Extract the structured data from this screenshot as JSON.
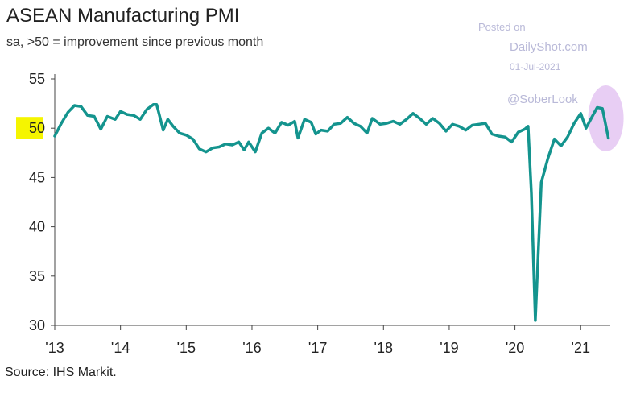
{
  "chart_data": {
    "type": "line",
    "title": "ASEAN Manufacturing PMI",
    "subtitle": "sa, >50 = improvement since previous month",
    "xlabel": "",
    "ylabel": "",
    "ylim": [
      30,
      55
    ],
    "yticks": [
      55,
      50,
      45,
      40,
      35,
      30
    ],
    "highlighted_ytick": 50,
    "highlight_color": "#f5f500",
    "xlim": [
      2013.0,
      2021.45
    ],
    "xticks": [
      {
        "value": 2013,
        "label": "'13"
      },
      {
        "value": 2014,
        "label": "'14"
      },
      {
        "value": 2015,
        "label": "'15"
      },
      {
        "value": 2016,
        "label": "'16"
      },
      {
        "value": 2017,
        "label": "'17"
      },
      {
        "value": 2018,
        "label": "'18"
      },
      {
        "value": 2019,
        "label": "'19"
      },
      {
        "value": 2020,
        "label": "'20"
      },
      {
        "value": 2021,
        "label": "'21"
      }
    ],
    "series": [
      {
        "name": "ASEAN Manufacturing PMI",
        "color": "#14948e",
        "points": [
          [
            2013.0,
            49.2
          ],
          [
            2013.1,
            50.5
          ],
          [
            2013.2,
            51.6
          ],
          [
            2013.3,
            52.3
          ],
          [
            2013.4,
            52.2
          ],
          [
            2013.5,
            51.3
          ],
          [
            2013.6,
            51.2
          ],
          [
            2013.7,
            49.9
          ],
          [
            2013.8,
            51.2
          ],
          [
            2013.92,
            50.9
          ],
          [
            2014.0,
            51.7
          ],
          [
            2014.1,
            51.4
          ],
          [
            2014.2,
            51.3
          ],
          [
            2014.3,
            50.9
          ],
          [
            2014.4,
            51.9
          ],
          [
            2014.5,
            52.4
          ],
          [
            2014.55,
            52.4
          ],
          [
            2014.65,
            49.8
          ],
          [
            2014.72,
            50.9
          ],
          [
            2014.8,
            50.2
          ],
          [
            2014.9,
            49.5
          ],
          [
            2015.0,
            49.3
          ],
          [
            2015.1,
            48.9
          ],
          [
            2015.2,
            47.9
          ],
          [
            2015.3,
            47.6
          ],
          [
            2015.4,
            48.0
          ],
          [
            2015.5,
            48.1
          ],
          [
            2015.6,
            48.4
          ],
          [
            2015.7,
            48.3
          ],
          [
            2015.8,
            48.6
          ],
          [
            2015.88,
            47.8
          ],
          [
            2015.95,
            48.6
          ],
          [
            2016.05,
            47.6
          ],
          [
            2016.15,
            49.5
          ],
          [
            2016.25,
            50.0
          ],
          [
            2016.35,
            49.5
          ],
          [
            2016.45,
            50.6
          ],
          [
            2016.55,
            50.3
          ],
          [
            2016.65,
            50.7
          ],
          [
            2016.7,
            49.0
          ],
          [
            2016.8,
            50.9
          ],
          [
            2016.9,
            50.6
          ],
          [
            2016.97,
            49.4
          ],
          [
            2017.05,
            49.8
          ],
          [
            2017.15,
            49.7
          ],
          [
            2017.25,
            50.4
          ],
          [
            2017.35,
            50.5
          ],
          [
            2017.45,
            51.1
          ],
          [
            2017.55,
            50.5
          ],
          [
            2017.65,
            50.2
          ],
          [
            2017.75,
            49.5
          ],
          [
            2017.83,
            51.0
          ],
          [
            2017.95,
            50.4
          ],
          [
            2018.05,
            50.5
          ],
          [
            2018.15,
            50.7
          ],
          [
            2018.25,
            50.4
          ],
          [
            2018.35,
            50.9
          ],
          [
            2018.45,
            51.5
          ],
          [
            2018.55,
            51.0
          ],
          [
            2018.65,
            50.4
          ],
          [
            2018.75,
            51.0
          ],
          [
            2018.85,
            50.5
          ],
          [
            2018.95,
            49.7
          ],
          [
            2019.05,
            50.4
          ],
          [
            2019.15,
            50.2
          ],
          [
            2019.25,
            49.8
          ],
          [
            2019.35,
            50.3
          ],
          [
            2019.45,
            50.4
          ],
          [
            2019.55,
            50.5
          ],
          [
            2019.65,
            49.4
          ],
          [
            2019.75,
            49.2
          ],
          [
            2019.85,
            49.1
          ],
          [
            2019.95,
            48.6
          ],
          [
            2020.05,
            49.6
          ],
          [
            2020.15,
            49.9
          ],
          [
            2020.2,
            50.2
          ],
          [
            2020.25,
            43.4
          ],
          [
            2020.31,
            30.5
          ],
          [
            2020.4,
            44.5
          ],
          [
            2020.5,
            46.9
          ],
          [
            2020.6,
            48.9
          ],
          [
            2020.7,
            48.2
          ],
          [
            2020.8,
            49.1
          ],
          [
            2020.9,
            50.5
          ],
          [
            2021.0,
            51.5
          ],
          [
            2021.08,
            50.0
          ],
          [
            2021.16,
            51.0
          ],
          [
            2021.25,
            52.1
          ],
          [
            2021.33,
            52.0
          ],
          [
            2021.42,
            49.0
          ]
        ]
      }
    ]
  },
  "watermark": {
    "posted_on": "Posted on",
    "site": "DailyShot.com",
    "date": "01-Jul-2021",
    "handle": "@SoberLook"
  },
  "source": "Source: IHS Markit."
}
